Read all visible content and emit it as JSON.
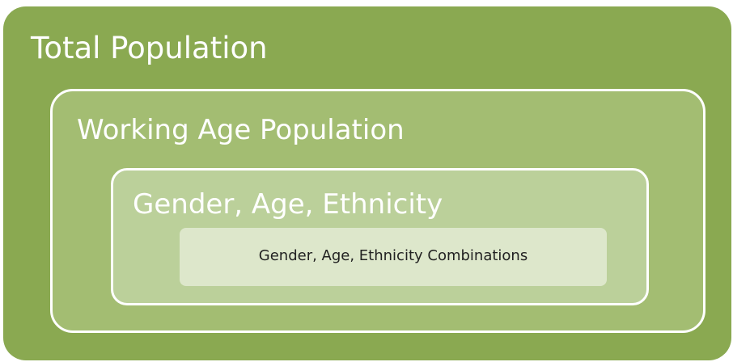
{
  "nodes": [
    {
      "label": "Total Population"
    },
    {
      "label": "Working Age Population"
    },
    {
      "label": "Gender, Age, Ethnicity"
    },
    {
      "label": "Gender, Age, Ethnicity Combinations"
    }
  ]
}
